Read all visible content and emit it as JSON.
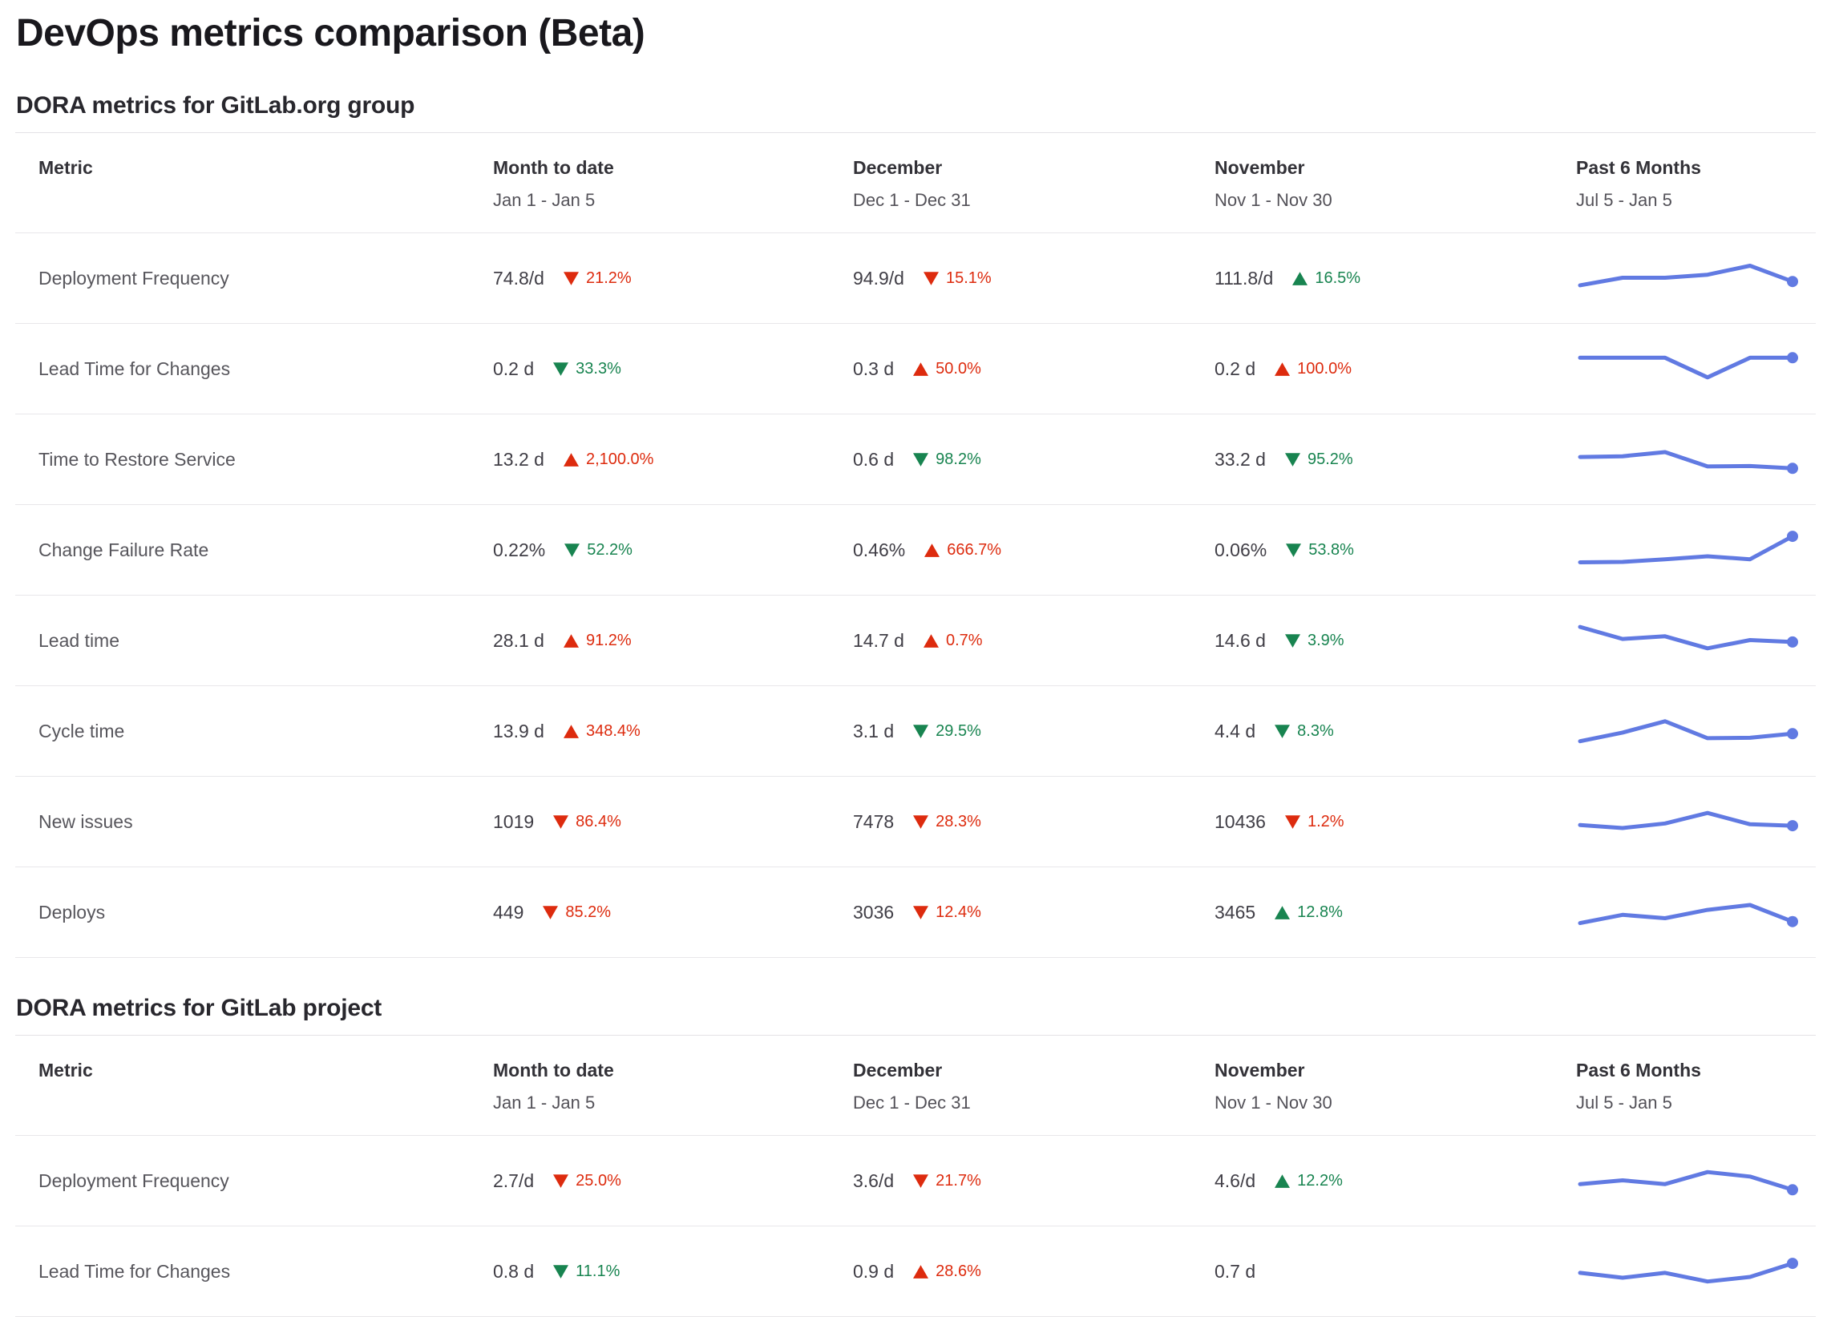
{
  "page": {
    "title": "DevOps metrics comparison (Beta)"
  },
  "colors": {
    "bad_red": "#dd2b0e",
    "good_green": "#188450",
    "sparkline_blue": "#617ae2"
  },
  "tables": [
    {
      "heading": "DORA metrics for GitLab.org group",
      "columns": [
        {
          "label": "Metric",
          "range": ""
        },
        {
          "label": "Month to date",
          "range": "Jan 1 - Jan 5"
        },
        {
          "label": "December",
          "range": "Dec 1 - Dec 31"
        },
        {
          "label": "November",
          "range": "Nov 1 - Nov 30"
        },
        {
          "label": "Past 6 Months",
          "range": "Jul 5 - Jan 5"
        }
      ],
      "rows": [
        {
          "metric": "Deployment Frequency",
          "cells": [
            {
              "value": "74.8/d",
              "dir": "down",
              "tone": "bad",
              "change": "21.2%"
            },
            {
              "value": "94.9/d",
              "dir": "down",
              "tone": "bad",
              "change": "15.1%"
            },
            {
              "value": "111.8/d",
              "dir": "up",
              "tone": "good",
              "change": "16.5%"
            }
          ],
          "sparkline": [
            0.3,
            0.5,
            0.5,
            0.58,
            0.82,
            0.4
          ]
        },
        {
          "metric": "Lead Time for Changes",
          "cells": [
            {
              "value": "0.2 d",
              "dir": "down",
              "tone": "good",
              "change": "33.3%"
            },
            {
              "value": "0.3 d",
              "dir": "up",
              "tone": "bad",
              "change": "50.0%"
            },
            {
              "value": "0.2 d",
              "dir": "up",
              "tone": "bad",
              "change": "100.0%"
            }
          ],
          "sparkline": [
            0.78,
            0.78,
            0.78,
            0.26,
            0.78,
            0.78
          ]
        },
        {
          "metric": "Time to Restore Service",
          "cells": [
            {
              "value": "13.2 d",
              "dir": "up",
              "tone": "bad",
              "change": "2,100.0%"
            },
            {
              "value": "0.6 d",
              "dir": "down",
              "tone": "good",
              "change": "98.2%"
            },
            {
              "value": "33.2 d",
              "dir": "down",
              "tone": "good",
              "change": "95.2%"
            }
          ],
          "sparkline": [
            0.55,
            0.57,
            0.68,
            0.3,
            0.31,
            0.25
          ]
        },
        {
          "metric": "Change Failure Rate",
          "cells": [
            {
              "value": "0.22%",
              "dir": "down",
              "tone": "good",
              "change": "52.2%"
            },
            {
              "value": "0.46%",
              "dir": "up",
              "tone": "bad",
              "change": "666.7%"
            },
            {
              "value": "0.06%",
              "dir": "down",
              "tone": "good",
              "change": "53.8%"
            }
          ],
          "sparkline": [
            0.16,
            0.17,
            0.24,
            0.32,
            0.24,
            0.85
          ]
        },
        {
          "metric": "Lead time",
          "cells": [
            {
              "value": "28.1 d",
              "dir": "up",
              "tone": "bad",
              "change": "91.2%"
            },
            {
              "value": "14.7 d",
              "dir": "up",
              "tone": "bad",
              "change": "0.7%"
            },
            {
              "value": "14.6 d",
              "dir": "down",
              "tone": "good",
              "change": "3.9%"
            }
          ],
          "sparkline": [
            0.85,
            0.53,
            0.6,
            0.28,
            0.5,
            0.45
          ]
        },
        {
          "metric": "Cycle time",
          "cells": [
            {
              "value": "13.9 d",
              "dir": "up",
              "tone": "bad",
              "change": "348.4%"
            },
            {
              "value": "3.1 d",
              "dir": "down",
              "tone": "good",
              "change": "29.5%"
            },
            {
              "value": "4.4 d",
              "dir": "down",
              "tone": "good",
              "change": "8.3%"
            }
          ],
          "sparkline": [
            0.22,
            0.45,
            0.75,
            0.3,
            0.31,
            0.42
          ]
        },
        {
          "metric": "New issues",
          "cells": [
            {
              "value": "1019",
              "dir": "down",
              "tone": "bad",
              "change": "86.4%"
            },
            {
              "value": "7478",
              "dir": "down",
              "tone": "bad",
              "change": "28.3%"
            },
            {
              "value": "10436",
              "dir": "down",
              "tone": "bad",
              "change": "1.2%"
            }
          ],
          "sparkline": [
            0.4,
            0.32,
            0.44,
            0.72,
            0.42,
            0.38
          ]
        },
        {
          "metric": "Deploys",
          "cells": [
            {
              "value": "449",
              "dir": "down",
              "tone": "bad",
              "change": "85.2%"
            },
            {
              "value": "3036",
              "dir": "down",
              "tone": "bad",
              "change": "12.4%"
            },
            {
              "value": "3465",
              "dir": "up",
              "tone": "good",
              "change": "12.8%"
            }
          ],
          "sparkline": [
            0.2,
            0.42,
            0.33,
            0.55,
            0.68,
            0.24
          ]
        }
      ]
    },
    {
      "heading": "DORA metrics for GitLab project",
      "columns": [
        {
          "label": "Metric",
          "range": ""
        },
        {
          "label": "Month to date",
          "range": "Jan 1 - Jan 5"
        },
        {
          "label": "December",
          "range": "Dec 1 - Dec 31"
        },
        {
          "label": "November",
          "range": "Nov 1 - Nov 30"
        },
        {
          "label": "Past 6 Months",
          "range": "Jul 5 - Jan 5"
        }
      ],
      "rows": [
        {
          "metric": "Deployment Frequency",
          "cells": [
            {
              "value": "2.7/d",
              "dir": "down",
              "tone": "bad",
              "change": "25.0%"
            },
            {
              "value": "3.6/d",
              "dir": "down",
              "tone": "bad",
              "change": "21.7%"
            },
            {
              "value": "4.6/d",
              "dir": "up",
              "tone": "good",
              "change": "12.2%"
            }
          ],
          "sparkline": [
            0.4,
            0.5,
            0.4,
            0.72,
            0.6,
            0.25
          ]
        },
        {
          "metric": "Lead Time for Changes",
          "cells": [
            {
              "value": "0.8 d",
              "dir": "down",
              "tone": "good",
              "change": "11.1%"
            },
            {
              "value": "0.9 d",
              "dir": "up",
              "tone": "bad",
              "change": "28.6%"
            },
            {
              "value": "0.7 d"
            }
          ],
          "sparkline": [
            0.45,
            0.32,
            0.45,
            0.22,
            0.34,
            0.7
          ]
        }
      ]
    }
  ]
}
